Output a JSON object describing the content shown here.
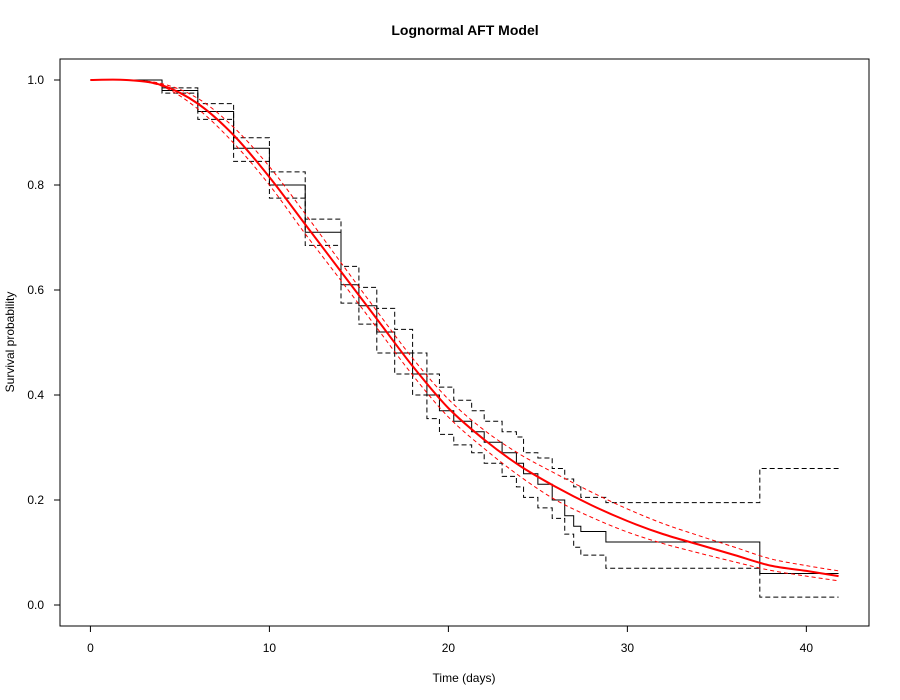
{
  "chart_data": {
    "type": "line",
    "title": "Lognormal AFT Model",
    "xlabel": "Time (days)",
    "ylabel": "Survival probability",
    "xlim": [
      -1.7,
      43.5
    ],
    "ylim": [
      -0.04,
      1.04
    ],
    "x_ticks": [
      0,
      10,
      20,
      30,
      40
    ],
    "y_ticks": [
      0.0,
      0.2,
      0.4,
      0.6,
      0.8,
      1.0
    ],
    "x_tick_labels": [
      "0",
      "10",
      "20",
      "30",
      "40"
    ],
    "y_tick_labels": [
      "0.0",
      "0.2",
      "0.4",
      "0.6",
      "0.8",
      "1.0"
    ],
    "grid": false,
    "legend": "none",
    "colors": {
      "km": "#000000",
      "model": "#ff0000"
    },
    "series": [
      {
        "style": "step",
        "color": "#000000",
        "dash": "solid",
        "width": 1,
        "points": [
          [
            0,
            1.0
          ],
          [
            2,
            1.0
          ],
          [
            4,
            0.98
          ],
          [
            6,
            0.94
          ],
          [
            8,
            0.87
          ],
          [
            10,
            0.8
          ],
          [
            12,
            0.71
          ],
          [
            14,
            0.61
          ],
          [
            15,
            0.57
          ],
          [
            16,
            0.52
          ],
          [
            17,
            0.48
          ],
          [
            18,
            0.44
          ],
          [
            18.8,
            0.4
          ],
          [
            19.5,
            0.37
          ],
          [
            20.3,
            0.35
          ],
          [
            21.3,
            0.33
          ],
          [
            22,
            0.31
          ],
          [
            23,
            0.29
          ],
          [
            23.8,
            0.27
          ],
          [
            24.2,
            0.25
          ],
          [
            25,
            0.23
          ],
          [
            25.8,
            0.2
          ],
          [
            26.5,
            0.17
          ],
          [
            27,
            0.15
          ],
          [
            27.4,
            0.14
          ],
          [
            28.8,
            0.12
          ],
          [
            37.4,
            0.12
          ],
          [
            37.4,
            0.06
          ],
          [
            41.8,
            0.06
          ]
        ]
      },
      {
        "style": "step",
        "color": "#000000",
        "dash": "5,3",
        "width": 1,
        "points": [
          [
            0,
            1.0
          ],
          [
            2,
            1.0
          ],
          [
            4,
            0.985
          ],
          [
            6,
            0.955
          ],
          [
            8,
            0.89
          ],
          [
            10,
            0.825
          ],
          [
            12,
            0.735
          ],
          [
            14,
            0.645
          ],
          [
            15,
            0.605
          ],
          [
            16,
            0.565
          ],
          [
            17,
            0.525
          ],
          [
            18,
            0.48
          ],
          [
            18.8,
            0.44
          ],
          [
            19.5,
            0.415
          ],
          [
            20.3,
            0.39
          ],
          [
            21.3,
            0.37
          ],
          [
            22,
            0.35
          ],
          [
            23,
            0.33
          ],
          [
            23.8,
            0.32
          ],
          [
            24.2,
            0.29
          ],
          [
            25,
            0.28
          ],
          [
            25.8,
            0.26
          ],
          [
            26.5,
            0.24
          ],
          [
            27,
            0.225
          ],
          [
            27.4,
            0.205
          ],
          [
            28.8,
            0.195
          ],
          [
            37.4,
            0.195
          ],
          [
            37.4,
            0.26
          ],
          [
            41.8,
            0.26
          ]
        ]
      },
      {
        "style": "step",
        "color": "#000000",
        "dash": "5,3",
        "width": 1,
        "points": [
          [
            0,
            1.0
          ],
          [
            2,
            1.0
          ],
          [
            4,
            0.975
          ],
          [
            6,
            0.925
          ],
          [
            8,
            0.845
          ],
          [
            10,
            0.775
          ],
          [
            12,
            0.685
          ],
          [
            14,
            0.575
          ],
          [
            15,
            0.535
          ],
          [
            16,
            0.48
          ],
          [
            17,
            0.44
          ],
          [
            18,
            0.4
          ],
          [
            18.8,
            0.355
          ],
          [
            19.5,
            0.325
          ],
          [
            20.3,
            0.305
          ],
          [
            21.3,
            0.29
          ],
          [
            22,
            0.27
          ],
          [
            23,
            0.245
          ],
          [
            23.8,
            0.225
          ],
          [
            24.2,
            0.205
          ],
          [
            25,
            0.185
          ],
          [
            25.8,
            0.165
          ],
          [
            26.5,
            0.135
          ],
          [
            27,
            0.11
          ],
          [
            27.4,
            0.095
          ],
          [
            28.8,
            0.07
          ],
          [
            37.4,
            0.07
          ],
          [
            37.4,
            0.015
          ],
          [
            41.8,
            0.015
          ]
        ]
      },
      {
        "style": "smooth",
        "color": "#ff0000",
        "dash": "solid",
        "width": 2,
        "points": [
          [
            0,
            1.0
          ],
          [
            2,
            1.0
          ],
          [
            4,
            0.99
          ],
          [
            6,
            0.955
          ],
          [
            8,
            0.895
          ],
          [
            10,
            0.815
          ],
          [
            12,
            0.725
          ],
          [
            14,
            0.635
          ],
          [
            16,
            0.545
          ],
          [
            18,
            0.455
          ],
          [
            20,
            0.375
          ],
          [
            22,
            0.315
          ],
          [
            24,
            0.265
          ],
          [
            26,
            0.225
          ],
          [
            28,
            0.19
          ],
          [
            30,
            0.16
          ],
          [
            32,
            0.135
          ],
          [
            34,
            0.115
          ],
          [
            36,
            0.095
          ],
          [
            38,
            0.075
          ],
          [
            40,
            0.065
          ],
          [
            41.8,
            0.055
          ]
        ]
      },
      {
        "style": "smooth",
        "color": "#ff0000",
        "dash": "4,3",
        "width": 1,
        "points": [
          [
            0,
            1.0
          ],
          [
            2,
            1.0
          ],
          [
            4,
            0.993
          ],
          [
            6,
            0.965
          ],
          [
            8,
            0.91
          ],
          [
            10,
            0.835
          ],
          [
            12,
            0.745
          ],
          [
            14,
            0.652
          ],
          [
            16,
            0.56
          ],
          [
            18,
            0.47
          ],
          [
            20,
            0.392
          ],
          [
            22,
            0.333
          ],
          [
            24,
            0.287
          ],
          [
            26,
            0.25
          ],
          [
            28,
            0.215
          ],
          [
            30,
            0.183
          ],
          [
            32,
            0.155
          ],
          [
            34,
            0.132
          ],
          [
            36,
            0.11
          ],
          [
            38,
            0.088
          ],
          [
            40,
            0.075
          ],
          [
            41.8,
            0.065
          ]
        ]
      },
      {
        "style": "smooth",
        "color": "#ff0000",
        "dash": "4,3",
        "width": 1,
        "points": [
          [
            0,
            1.0
          ],
          [
            2,
            1.0
          ],
          [
            4,
            0.988
          ],
          [
            6,
            0.945
          ],
          [
            8,
            0.88
          ],
          [
            10,
            0.8
          ],
          [
            12,
            0.707
          ],
          [
            14,
            0.618
          ],
          [
            16,
            0.528
          ],
          [
            18,
            0.438
          ],
          [
            20,
            0.358
          ],
          [
            22,
            0.298
          ],
          [
            24,
            0.245
          ],
          [
            26,
            0.2
          ],
          [
            28,
            0.167
          ],
          [
            30,
            0.139
          ],
          [
            32,
            0.117
          ],
          [
            34,
            0.099
          ],
          [
            36,
            0.082
          ],
          [
            38,
            0.066
          ],
          [
            40,
            0.055
          ],
          [
            41.8,
            0.046
          ]
        ]
      }
    ]
  }
}
